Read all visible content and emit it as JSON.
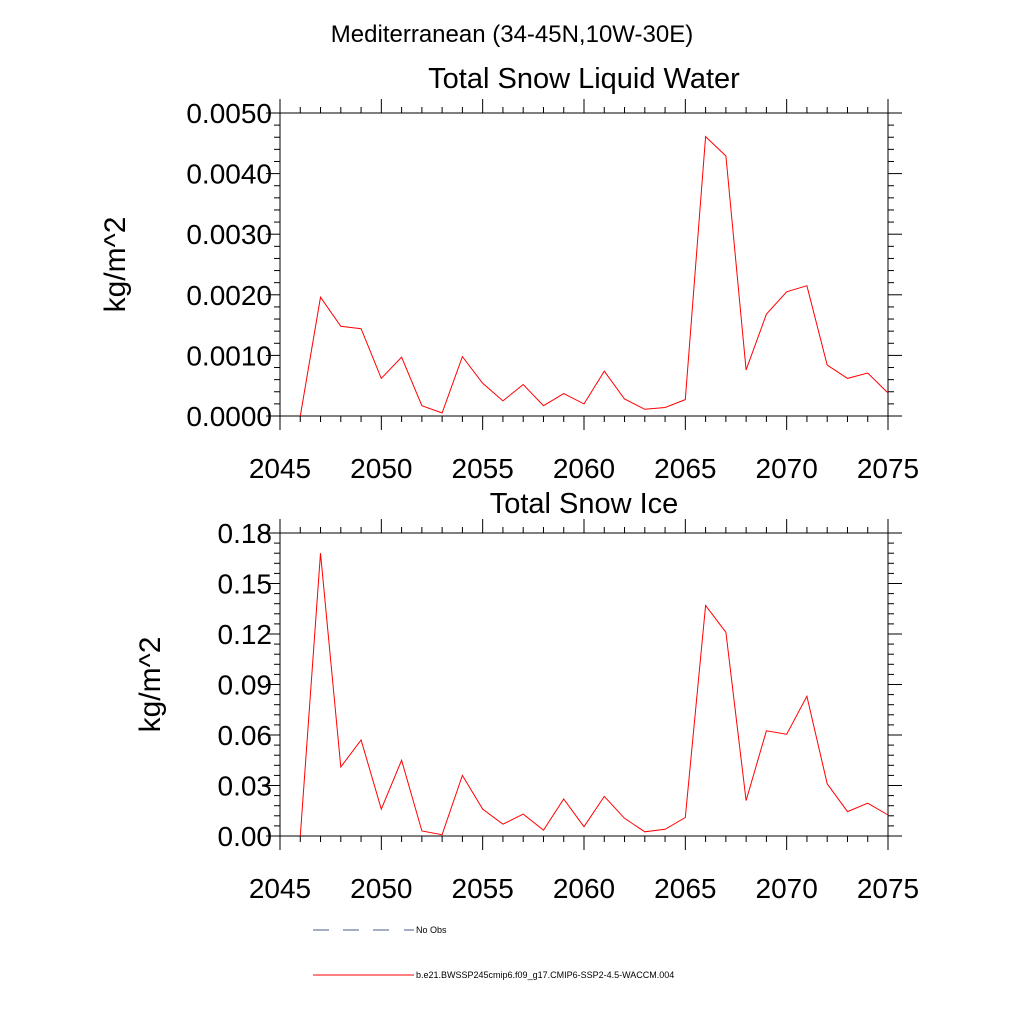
{
  "figure": {
    "suptitle": "Mediterranean (34-45N,10W-30E)"
  },
  "chart_data": [
    {
      "type": "line",
      "title": "Total Snow Liquid Water",
      "xlabel": "",
      "ylabel": "kg/m^2",
      "xlim": [
        2045,
        2075
      ],
      "ylim": [
        0,
        0.005
      ],
      "x_ticks": [
        "2045",
        "2050",
        "2055",
        "2060",
        "2065",
        "2070",
        "2075"
      ],
      "y_ticks": [
        "0.0000",
        "0.0010",
        "0.0020",
        "0.0030",
        "0.0040",
        "0.0050"
      ],
      "grid": false,
      "x": [
        2046,
        2047,
        2048,
        2049,
        2050,
        2051,
        2052,
        2053,
        2054,
        2055,
        2056,
        2057,
        2058,
        2059,
        2060,
        2061,
        2062,
        2063,
        2064,
        2065,
        2066,
        2067,
        2068,
        2069,
        2070,
        2071,
        2072,
        2073,
        2074,
        2075
      ],
      "series": [
        {
          "name": "b.e21.BWSSP245cmip6.f09_g17.CMIP6-SSP2-4.5-WACCM.004",
          "color": "#ff0000",
          "values": [
            0.0,
            0.00196,
            0.00148,
            0.00144,
            0.00062,
            0.00097,
            0.00017,
            5e-05,
            0.00098,
            0.00054,
            0.00025,
            0.00052,
            0.00017,
            0.00037,
            0.0002,
            0.00074,
            0.00028,
            0.00011,
            0.00014,
            0.00027,
            0.00461,
            0.00429,
            0.00076,
            0.00168,
            0.00205,
            0.00215,
            0.00084,
            0.00062,
            0.00071,
            0.00038
          ]
        }
      ]
    },
    {
      "type": "line",
      "title": "Total Snow Ice",
      "xlabel": "",
      "ylabel": "kg/m^2",
      "xlim": [
        2045,
        2075
      ],
      "ylim": [
        0,
        0.18
      ],
      "x_ticks": [
        "2045",
        "2050",
        "2055",
        "2060",
        "2065",
        "2070",
        "2075"
      ],
      "y_ticks": [
        "0.00",
        "0.03",
        "0.06",
        "0.09",
        "0.12",
        "0.15",
        "0.18"
      ],
      "grid": false,
      "x": [
        2046,
        2047,
        2048,
        2049,
        2050,
        2051,
        2052,
        2053,
        2054,
        2055,
        2056,
        2057,
        2058,
        2059,
        2060,
        2061,
        2062,
        2063,
        2064,
        2065,
        2066,
        2067,
        2068,
        2069,
        2070,
        2071,
        2072,
        2073,
        2074,
        2075
      ],
      "series": [
        {
          "name": "b.e21.BWSSP245cmip6.f09_g17.CMIP6-SSP2-4.5-WACCM.004",
          "color": "#ff0000",
          "values": [
            0.0,
            0.168,
            0.041,
            0.057,
            0.016,
            0.045,
            0.003,
            0.0008,
            0.036,
            0.016,
            0.007,
            0.013,
            0.0035,
            0.022,
            0.0055,
            0.0235,
            0.0105,
            0.0025,
            0.004,
            0.011,
            0.137,
            0.121,
            0.021,
            0.0625,
            0.0605,
            0.083,
            0.031,
            0.0145,
            0.0195,
            0.0125
          ]
        }
      ]
    }
  ],
  "legend": {
    "position": "bottom",
    "items": [
      {
        "label": "No Obs",
        "color": "#4b5a8c",
        "style": "dashed"
      },
      {
        "label": "b.e21.BWSSP245cmip6.f09_g17.CMIP6-SSP2-4.5-WACCM.004",
        "color": "#ff0000",
        "style": "solid"
      }
    ]
  }
}
